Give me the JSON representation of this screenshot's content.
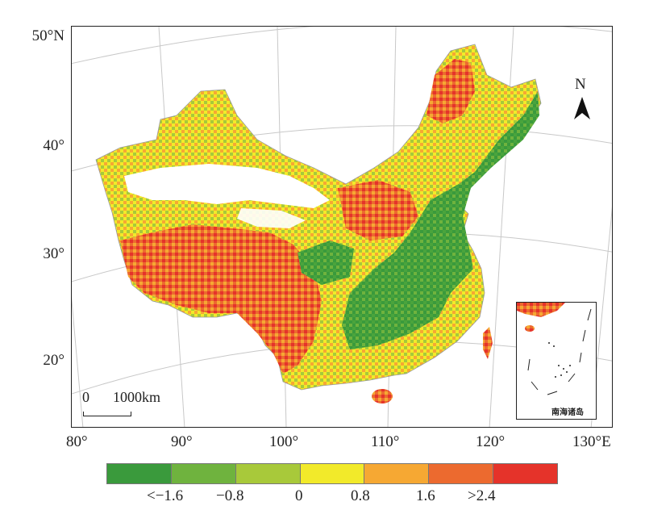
{
  "latitude_labels": [
    "50°N",
    "40°",
    "30°",
    "20°"
  ],
  "longitude_labels": [
    "80°",
    "90°",
    "100°",
    "110°",
    "120°",
    "130°E"
  ],
  "north_arrow": {
    "label": "N",
    "icon": "north-arrow-icon"
  },
  "scale_bar": {
    "start": "0",
    "distance": "1000km"
  },
  "inset": {
    "label": "南海诸岛"
  },
  "legend": {
    "classes": [
      {
        "color": "#3a9a3c"
      },
      {
        "color": "#6fb33e"
      },
      {
        "color": "#a8c93a"
      },
      {
        "color": "#f2ea2a"
      },
      {
        "color": "#f6a833"
      },
      {
        "color": "#ec6a2f"
      },
      {
        "color": "#e5332a"
      }
    ],
    "tick_labels": [
      "<−1.6",
      "−0.8",
      "0",
      "0.8",
      "1.6",
      ">2.4"
    ]
  }
}
